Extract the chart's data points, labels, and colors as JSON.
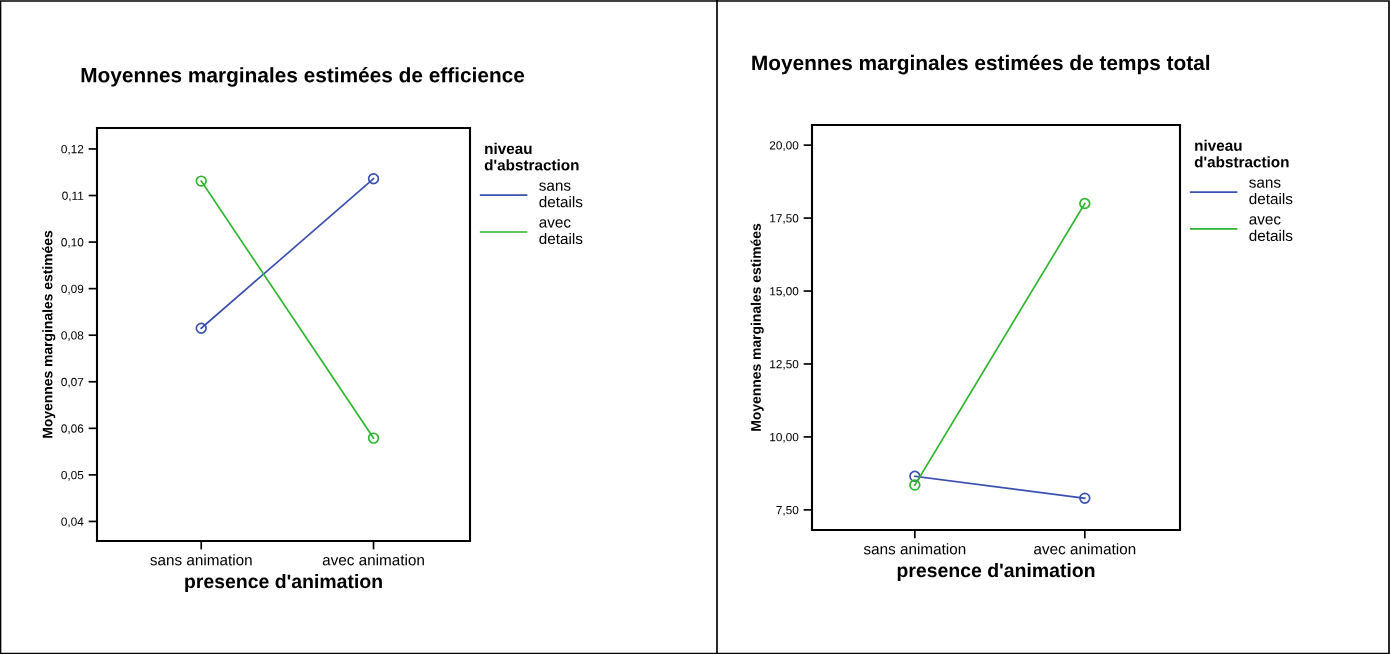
{
  "chart_data": [
    {
      "type": "line",
      "title": "Moyennes marginales estimées de efficience",
      "xlabel": "presence d'animation",
      "ylabel": "Moyennes marginales estimées",
      "legend_title": "niveau d'abstraction",
      "legend": "right",
      "marker": "circle",
      "line_style": "solid",
      "grid": false,
      "categories": [
        "sans animation",
        "avec animation"
      ],
      "series": [
        {
          "name": "sans details",
          "color": "#3a4fb0",
          "values": [
            0.0815,
            0.1136
          ]
        },
        {
          "name": "avec details",
          "color": "#2db52d",
          "values": [
            0.1131,
            0.0579
          ]
        }
      ],
      "ylim": [
        0.0358,
        0.1245
      ],
      "yticks": [
        {
          "value": 0.04,
          "label": "0,04"
        },
        {
          "value": 0.05,
          "label": "0,05"
        },
        {
          "value": 0.06,
          "label": "0,06"
        },
        {
          "value": 0.07,
          "label": "0,07"
        },
        {
          "value": 0.08,
          "label": "0,08"
        },
        {
          "value": 0.09,
          "label": "0,09"
        },
        {
          "value": 0.1,
          "label": "0,10"
        },
        {
          "value": 0.11,
          "label": "0,11"
        },
        {
          "value": 0.12,
          "label": "0,12"
        }
      ]
    },
    {
      "type": "line",
      "title": "Moyennes marginales estimées de temps total",
      "xlabel": "presence d'animation",
      "ylabel": "Moyennes marginales estimées",
      "legend_title": "niveau d'abstraction",
      "legend": "right",
      "marker": "circle",
      "line_style": "solid",
      "grid": false,
      "categories": [
        "sans animation",
        "avec animation"
      ],
      "series": [
        {
          "name": "sans details",
          "color": "#3a4fb0",
          "values": [
            8.65,
            7.9
          ]
        },
        {
          "name": "avec details",
          "color": "#2db52d",
          "values": [
            8.35,
            18.0
          ]
        }
      ],
      "ylim": [
        6.81,
        20.69
      ],
      "yticks": [
        {
          "value": 7.5,
          "label": "7,50"
        },
        {
          "value": 10,
          "label": "10,00"
        },
        {
          "value": 12.5,
          "label": "12,50"
        },
        {
          "value": 15,
          "label": "15,00"
        },
        {
          "value": 17.5,
          "label": "17,50"
        },
        {
          "value": 20,
          "label": "20,00"
        }
      ]
    }
  ]
}
